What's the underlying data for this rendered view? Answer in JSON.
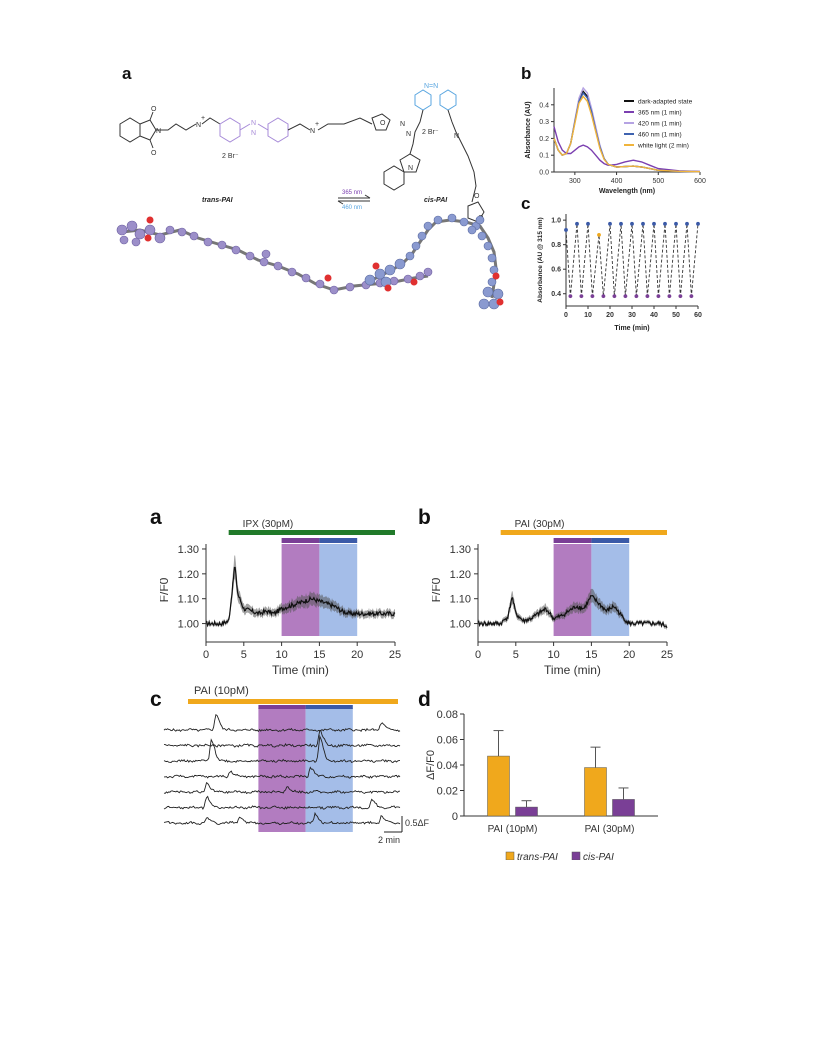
{
  "figure_top": {
    "panel_a": {
      "label": "a",
      "trans_name": "trans-PAI",
      "cis_name": "cis-PAI",
      "counterion": "2 Br⁻",
      "arrow_top": "365 nm",
      "arrow_bottom": "460 nm",
      "atom_N": "N",
      "atom_O": "O",
      "azo": "N=N",
      "plus": "+",
      "colors": {
        "azo": "#a78bd8",
        "cis_azo": "#5aa6e0",
        "ball_trans": "#9c8fc9",
        "ball_cis": "#8a9ad0",
        "oxygen": "#e03030",
        "dark": "#333333"
      }
    },
    "panel_b": {
      "label": "b"
    },
    "panel_c": {
      "label": "c"
    }
  },
  "figure_bottom": {
    "panel_a": {
      "label": "a"
    },
    "panel_b": {
      "label": "b"
    },
    "panel_c": {
      "label": "c",
      "bar_label": "PAI (10pM)",
      "scale_y": "0.5ΔF",
      "scale_x": "2 min"
    },
    "panel_d": {
      "label": "d"
    }
  },
  "colors": {
    "orange": "#f0a81c",
    "purple": "#7a3f96",
    "blue": "#3b5aa8",
    "green": "#217a2a",
    "purple_shade": "#b27cc0",
    "blue_shade": "#a4bde8"
  },
  "chart_data": [
    {
      "id": "top-b",
      "type": "line",
      "xlabel": "Wavelength (nm)",
      "ylabel": "Absorbance (AU)",
      "xlim": [
        250,
        600
      ],
      "ylim": [
        0,
        0.5
      ],
      "xticks": [
        "300",
        "400",
        "500",
        "600"
      ],
      "yticks": [
        "0.0",
        "0.1",
        "0.2",
        "0.3",
        "0.4"
      ],
      "legend_position": "right",
      "series": [
        {
          "name": "dark-adapted state",
          "color": "#111111",
          "x": [
            250,
            260,
            270,
            280,
            290,
            300,
            310,
            320,
            330,
            340,
            350,
            360,
            370,
            380,
            400,
            420,
            440,
            460,
            480,
            500,
            550,
            600
          ],
          "y": [
            0.2,
            0.13,
            0.1,
            0.11,
            0.17,
            0.3,
            0.43,
            0.48,
            0.45,
            0.37,
            0.26,
            0.15,
            0.08,
            0.045,
            0.03,
            0.032,
            0.035,
            0.03,
            0.02,
            0.01,
            0.004,
            0.002
          ]
        },
        {
          "name": "365 nm (1 min)",
          "color": "#7b3fb0",
          "x": [
            250,
            260,
            270,
            280,
            290,
            300,
            310,
            320,
            330,
            340,
            350,
            360,
            370,
            380,
            400,
            420,
            440,
            460,
            480,
            500,
            550,
            600
          ],
          "y": [
            0.27,
            0.18,
            0.13,
            0.11,
            0.11,
            0.13,
            0.15,
            0.16,
            0.15,
            0.13,
            0.1,
            0.07,
            0.05,
            0.04,
            0.045,
            0.06,
            0.07,
            0.06,
            0.04,
            0.02,
            0.007,
            0.003
          ]
        },
        {
          "name": "420 nm (1 min)",
          "color": "#b5a3e3",
          "x": [
            250,
            260,
            270,
            280,
            290,
            300,
            310,
            320,
            330,
            340,
            350,
            360,
            370,
            380,
            400,
            420,
            440,
            460,
            480,
            500,
            550,
            600
          ],
          "y": [
            0.2,
            0.13,
            0.1,
            0.11,
            0.17,
            0.31,
            0.44,
            0.5,
            0.47,
            0.38,
            0.27,
            0.16,
            0.08,
            0.045,
            0.03,
            0.032,
            0.035,
            0.03,
            0.02,
            0.01,
            0.004,
            0.002
          ]
        },
        {
          "name": "460 nm (1 min)",
          "color": "#3f63b0",
          "x": [
            250,
            260,
            270,
            280,
            290,
            300,
            310,
            320,
            330,
            340,
            350,
            360,
            370,
            380,
            400,
            420,
            440,
            460,
            480,
            500,
            550,
            600
          ],
          "y": [
            0.2,
            0.13,
            0.1,
            0.11,
            0.17,
            0.3,
            0.42,
            0.47,
            0.44,
            0.36,
            0.25,
            0.15,
            0.08,
            0.045,
            0.03,
            0.032,
            0.035,
            0.03,
            0.02,
            0.01,
            0.004,
            0.002
          ]
        },
        {
          "name": "white light (2 min)",
          "color": "#f0b43c",
          "x": [
            250,
            260,
            270,
            280,
            290,
            300,
            310,
            320,
            330,
            340,
            350,
            360,
            370,
            380,
            400,
            420,
            440,
            460,
            480,
            500,
            550,
            600
          ],
          "y": [
            0.2,
            0.13,
            0.1,
            0.11,
            0.17,
            0.29,
            0.41,
            0.45,
            0.42,
            0.34,
            0.24,
            0.14,
            0.075,
            0.045,
            0.03,
            0.032,
            0.035,
            0.03,
            0.02,
            0.01,
            0.004,
            0.002
          ]
        }
      ]
    },
    {
      "id": "top-c",
      "type": "line",
      "xlabel": "Time (min)",
      "ylabel": "Absorbance (AU @ 315 nm)",
      "xlim": [
        0,
        60
      ],
      "ylim": [
        0.3,
        1.05
      ],
      "xticks": [
        "0",
        "10",
        "20",
        "30",
        "40",
        "50",
        "60"
      ],
      "yticks": [
        "0.4",
        "0.6",
        "0.8",
        "1.0"
      ],
      "x": [
        0,
        2,
        5,
        7,
        10,
        12,
        15,
        17,
        20,
        22,
        25,
        27,
        30,
        32,
        35,
        37,
        40,
        42,
        45,
        47,
        50,
        52,
        55,
        57,
        60
      ],
      "y": [
        0.92,
        0.38,
        0.97,
        0.38,
        0.97,
        0.38,
        0.88,
        0.38,
        0.97,
        0.38,
        0.97,
        0.38,
        0.97,
        0.38,
        0.97,
        0.38,
        0.97,
        0.38,
        0.97,
        0.38,
        0.97,
        0.38,
        0.97,
        0.38,
        0.97
      ],
      "marker_colors": [
        "#3b5aa8",
        "#7a3f96",
        "#3b5aa8",
        "#7a3f96",
        "#3b5aa8",
        "#7a3f96",
        "#f0a81c",
        "#7a3f96",
        "#3b5aa8",
        "#7a3f96",
        "#3b5aa8",
        "#7a3f96",
        "#3b5aa8",
        "#7a3f96",
        "#3b5aa8",
        "#7a3f96",
        "#3b5aa8",
        "#7a3f96",
        "#3b5aa8",
        "#7a3f96",
        "#3b5aa8",
        "#7a3f96",
        "#3b5aa8",
        "#7a3f96",
        "#3b5aa8"
      ]
    },
    {
      "id": "bottom-a",
      "type": "line",
      "bar_label": "IPX (30pM)",
      "bar_color": "#217a2a",
      "bar_range": [
        3,
        25
      ],
      "purple_window": [
        10,
        15
      ],
      "blue_window": [
        15,
        20
      ],
      "xlabel": "Time (min)",
      "ylabel": "F/F0",
      "xlim": [
        0,
        25
      ],
      "ylim": [
        0.95,
        1.32
      ],
      "xticks": [
        "0",
        "5",
        "10",
        "15",
        "20",
        "25"
      ],
      "yticks": [
        "1.00",
        "1.10",
        "1.20",
        "1.30"
      ],
      "x": [
        0,
        1,
        2,
        3,
        3.5,
        3.8,
        4.2,
        5,
        6,
        7,
        8,
        9,
        10,
        11,
        12,
        13,
        14,
        15,
        16,
        17,
        18,
        19,
        20,
        21,
        22,
        23,
        24,
        25
      ],
      "y": [
        1.0,
        1.0,
        1.0,
        1.01,
        1.14,
        1.24,
        1.12,
        1.06,
        1.05,
        1.04,
        1.05,
        1.04,
        1.06,
        1.07,
        1.08,
        1.09,
        1.1,
        1.09,
        1.08,
        1.07,
        1.05,
        1.04,
        1.04,
        1.04,
        1.04,
        1.04,
        1.04,
        1.04
      ]
    },
    {
      "id": "bottom-b",
      "type": "line",
      "bar_label": "PAI (30pM)",
      "bar_color": "#f0a81c",
      "bar_range": [
        3,
        25
      ],
      "purple_window": [
        10,
        15
      ],
      "blue_window": [
        15,
        20
      ],
      "xlabel": "Time (min)",
      "ylabel": "F/F0",
      "xlim": [
        0,
        25
      ],
      "ylim": [
        0.95,
        1.32
      ],
      "xticks": [
        "0",
        "5",
        "10",
        "15",
        "20",
        "25"
      ],
      "yticks": [
        "1.00",
        "1.10",
        "1.20",
        "1.30"
      ],
      "x": [
        0,
        1,
        2,
        3,
        4,
        4.5,
        5,
        6,
        7,
        8,
        9,
        10,
        11,
        12,
        13,
        14,
        15,
        16,
        17,
        18,
        19,
        20,
        21,
        22,
        23,
        24,
        25
      ],
      "y": [
        1.0,
        1.0,
        1.0,
        1.0,
        1.03,
        1.11,
        1.04,
        1.01,
        1.02,
        1.04,
        1.06,
        1.02,
        1.03,
        1.05,
        1.07,
        1.06,
        1.11,
        1.08,
        1.05,
        1.07,
        1.03,
        1.0,
        1.0,
        1.0,
        1.0,
        1.0,
        0.99
      ]
    },
    {
      "id": "bottom-c",
      "type": "line",
      "x_range": [
        0,
        25
      ],
      "purple_window": [
        10,
        15
      ],
      "blue_window": [
        15,
        20
      ],
      "traces": [
        {
          "peaks": [
            [
              5.5,
              0.09
            ],
            [
              23,
              0.04
            ]
          ]
        },
        {
          "peaks": [
            [
              16.5,
              0.08
            ]
          ]
        },
        {
          "peaks": [
            [
              5,
              0.12
            ],
            [
              16.5,
              0.13
            ]
          ]
        },
        {
          "peaks": [
            [
              7,
              0.03
            ],
            [
              15.5,
              0.05
            ]
          ]
        },
        {
          "peaks": [
            [
              4.5,
              0.05
            ],
            [
              13,
              0.03
            ]
          ]
        },
        {
          "peaks": [
            [
              4.5,
              0.06
            ],
            [
              22,
              0.04
            ]
          ]
        },
        {
          "peaks": [
            [
              4.5,
              0.03
            ],
            [
              8,
              0.03
            ],
            [
              16,
              0.05
            ],
            [
              23,
              0.04
            ]
          ]
        }
      ]
    },
    {
      "id": "bottom-d",
      "type": "bar",
      "categories": [
        "PAI (10pM)",
        "PAI (30pM)"
      ],
      "ylabel": "ΔF/F0",
      "ylim": [
        0,
        0.08
      ],
      "yticks": [
        "0",
        "0.02",
        "0.04",
        "0.06",
        "0.08"
      ],
      "legend_position": "bottom",
      "series": [
        {
          "name": "trans-PAI",
          "color": "#f0a81c",
          "values": [
            0.047,
            0.038
          ],
          "errors": [
            0.02,
            0.016
          ]
        },
        {
          "name": "cis-PAI",
          "color": "#7a3f96",
          "values": [
            0.007,
            0.013
          ],
          "errors": [
            0.005,
            0.009
          ]
        }
      ]
    }
  ]
}
